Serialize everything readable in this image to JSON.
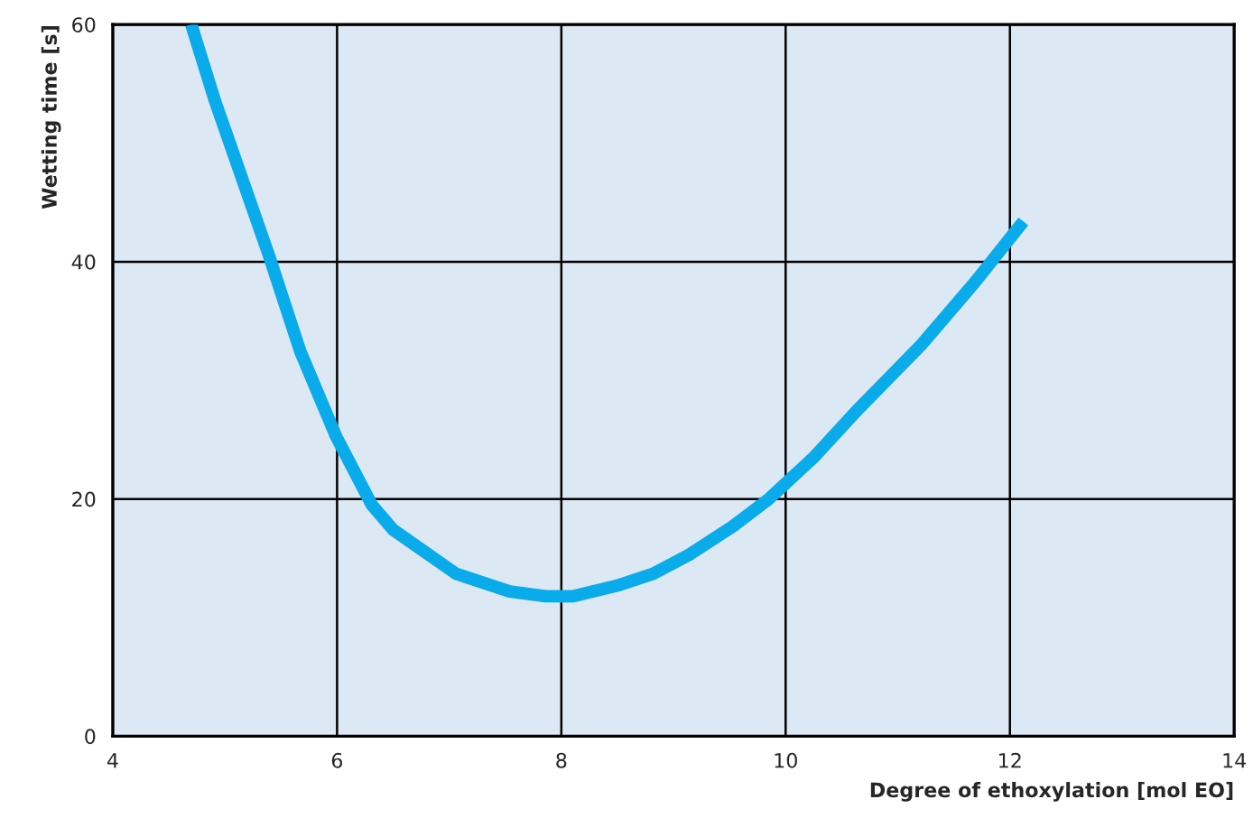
{
  "chart_data": {
    "type": "line",
    "xlabel": "Degree of ethoxylation [mol EO]",
    "ylabel": "Wetting time [s]",
    "x": [
      4.7,
      4.91,
      5.39,
      5.67,
      5.99,
      6.31,
      6.5,
      7.06,
      7.54,
      7.86,
      8.1,
      8.5,
      8.82,
      9.14,
      9.53,
      9.85,
      10.25,
      10.65,
      11.21,
      11.69,
      12.12
    ],
    "series": [
      {
        "color": "#0aabea",
        "values": [
          60,
          53.6,
          40.6,
          32.5,
          25.3,
          19.5,
          17.4,
          13.7,
          12.2,
          11.8,
          11.8,
          12.7,
          13.7,
          15.3,
          17.7,
          20.0,
          23.5,
          27.6,
          33.0,
          38.3,
          43.4
        ]
      }
    ],
    "xlim": [
      4,
      14
    ],
    "ylim": [
      0,
      60
    ],
    "xticks": [
      4,
      6,
      8,
      10,
      12,
      14
    ],
    "yticks": [
      0,
      20,
      40,
      60
    ],
    "grid": true,
    "legend": false,
    "marker": "none",
    "line_style": "solid"
  }
}
